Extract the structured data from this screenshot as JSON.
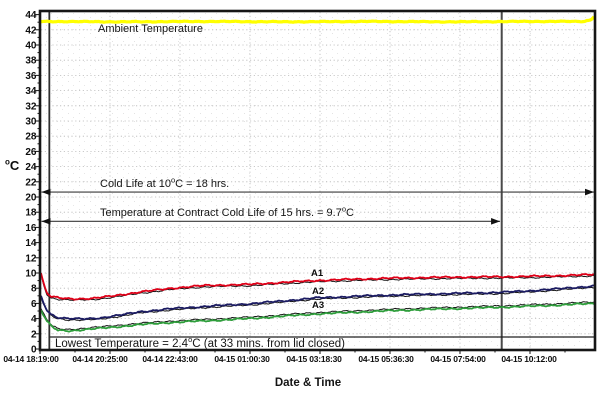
{
  "chart_data": {
    "type": "line",
    "xlabel": "Date & Time",
    "ylabel": {
      "sup": "o",
      "main": "C"
    },
    "ylim": [
      0,
      44
    ],
    "ytick_step": 2,
    "x_tick_labels": [
      "04-14 18:19:00",
      "04-14 20:25:00",
      "04-14 22:43:00",
      "04-15 01:00:30",
      "04-15 03:18:30",
      "04-15 05:36:30",
      "04-15 07:54:00",
      "04-15 10:12:00"
    ],
    "grid_color": "#b8b8b8",
    "border_color": "#161616",
    "marker_color": "#3a3a3a",
    "total_minutes": 1011,
    "series": [
      {
        "name": "Ambient",
        "color": "#ffff00",
        "width": 3.2,
        "points": [
          [
            0,
            43.1
          ],
          [
            150,
            43.05
          ],
          [
            300,
            43.1
          ],
          [
            450,
            43.05
          ],
          [
            600,
            43.1
          ],
          [
            750,
            43.05
          ],
          [
            900,
            43.1
          ],
          [
            990,
            43.1
          ],
          [
            1003,
            43.3
          ],
          [
            1011,
            43.9
          ]
        ]
      },
      {
        "name": "A1",
        "color": "#df0018",
        "width": 1.8,
        "points": [
          [
            0,
            10.6
          ],
          [
            5,
            9.0
          ],
          [
            12,
            7.4
          ],
          [
            20,
            6.9
          ],
          [
            35,
            6.7
          ],
          [
            60,
            6.6
          ],
          [
            95,
            6.65
          ],
          [
            130,
            6.95
          ],
          [
            182,
            7.5
          ],
          [
            240,
            8.0
          ],
          [
            300,
            8.35
          ],
          [
            382,
            8.5
          ],
          [
            440,
            8.75
          ],
          [
            500,
            9.0
          ],
          [
            580,
            9.2
          ],
          [
            660,
            9.35
          ],
          [
            750,
            9.45
          ],
          [
            841,
            9.5
          ],
          [
            920,
            9.6
          ],
          [
            1011,
            9.8
          ]
        ]
      },
      {
        "name": "A2",
        "color": "#1c1c62",
        "width": 1.8,
        "points": [
          [
            0,
            7.3
          ],
          [
            5,
            6.3
          ],
          [
            12,
            5.2
          ],
          [
            20,
            4.6
          ],
          [
            30,
            4.2
          ],
          [
            50,
            4.0
          ],
          [
            80,
            3.95
          ],
          [
            110,
            4.1
          ],
          [
            150,
            4.5
          ],
          [
            182,
            4.9
          ],
          [
            240,
            5.3
          ],
          [
            300,
            5.6
          ],
          [
            382,
            5.95
          ],
          [
            440,
            6.3
          ],
          [
            500,
            6.7
          ],
          [
            580,
            6.95
          ],
          [
            660,
            7.15
          ],
          [
            750,
            7.3
          ],
          [
            841,
            7.45
          ],
          [
            900,
            7.7
          ],
          [
            950,
            7.95
          ],
          [
            1011,
            8.3
          ]
        ]
      },
      {
        "name": "A3",
        "color": "#2f9e3c",
        "width": 1.8,
        "points": [
          [
            0,
            5.4
          ],
          [
            6,
            4.5
          ],
          [
            13,
            3.6
          ],
          [
            22,
            2.9
          ],
          [
            33,
            2.45
          ],
          [
            55,
            2.4
          ],
          [
            90,
            2.6
          ],
          [
            130,
            2.85
          ],
          [
            182,
            3.2
          ],
          [
            240,
            3.5
          ],
          [
            300,
            3.7
          ],
          [
            382,
            4.0
          ],
          [
            440,
            4.3
          ],
          [
            500,
            4.6
          ],
          [
            580,
            4.85
          ],
          [
            660,
            5.1
          ],
          [
            750,
            5.3
          ],
          [
            841,
            5.5
          ],
          [
            920,
            5.7
          ],
          [
            1011,
            6.0
          ]
        ]
      }
    ],
    "annotations": {
      "ambient": {
        "text": "Ambient Temperature"
      },
      "cold_life": {
        "pre": "Cold Life at 10",
        "sup": "o",
        "post": "C = 18 hrs.",
        "temp_c": 20.65,
        "t_start_min": 0,
        "t_end_min": 1011
      },
      "contract": {
        "pre": "Temperature at Contract Cold Life of 15 hrs. = 9.7",
        "sup": "o",
        "post": "C",
        "temp_c": 16.8,
        "t_start_min": 0,
        "t_end_min": 838
      },
      "lowest": {
        "pre": "Lowest Temperature = 2.4",
        "sup": "o",
        "post": "C (at 33 mins. from lid closed)"
      }
    },
    "markers": [
      {
        "name": "lid-closed-line",
        "t_min": 17
      },
      {
        "name": "cold-life-end-line",
        "t_min": 841
      }
    ]
  }
}
